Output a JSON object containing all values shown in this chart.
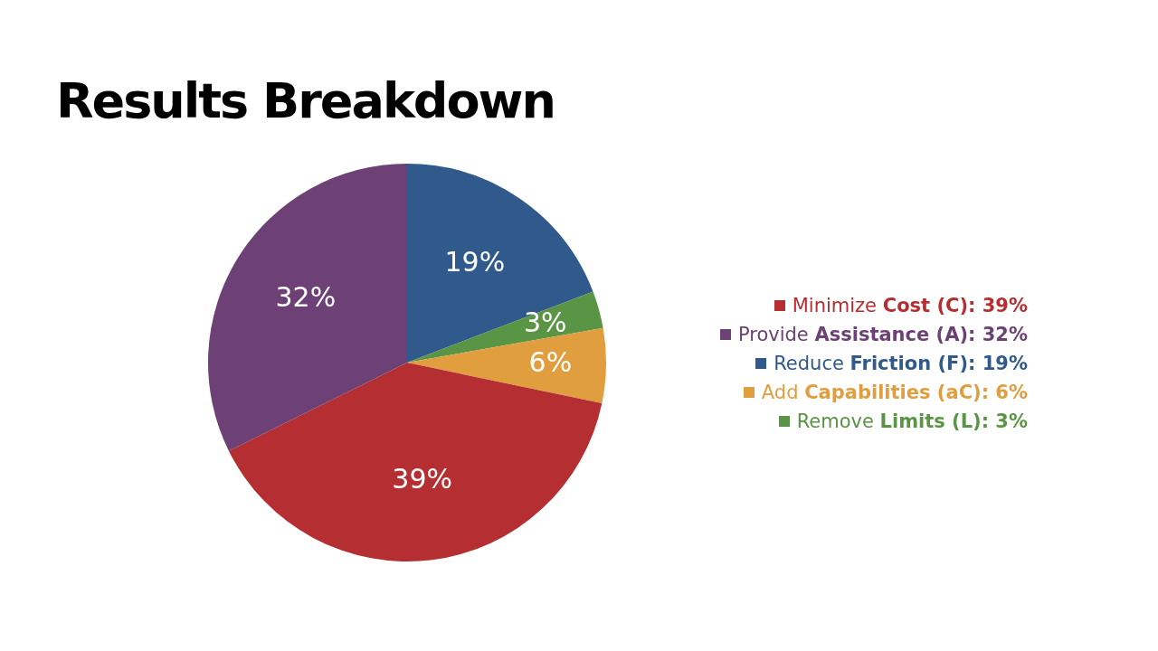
{
  "chart_data": {
    "type": "pie",
    "title": "Results Breakdown",
    "categories": [
      "Reduce Friction (F): 19%",
      "Remove Limits (L): 3%",
      "Add Capabilities (aC): 6%",
      "Minimize Cost (C): 39%",
      "Provide Assistance (A): 32%"
    ],
    "values": [
      19,
      3,
      6,
      39,
      32
    ],
    "colors": [
      "#305a8c",
      "#5a9445",
      "#e19e3f",
      "#b52f32",
      "#6d4175"
    ],
    "value_labels": [
      "19%",
      "3%",
      "6%",
      "39%",
      "32%"
    ],
    "legend": "right"
  }
}
